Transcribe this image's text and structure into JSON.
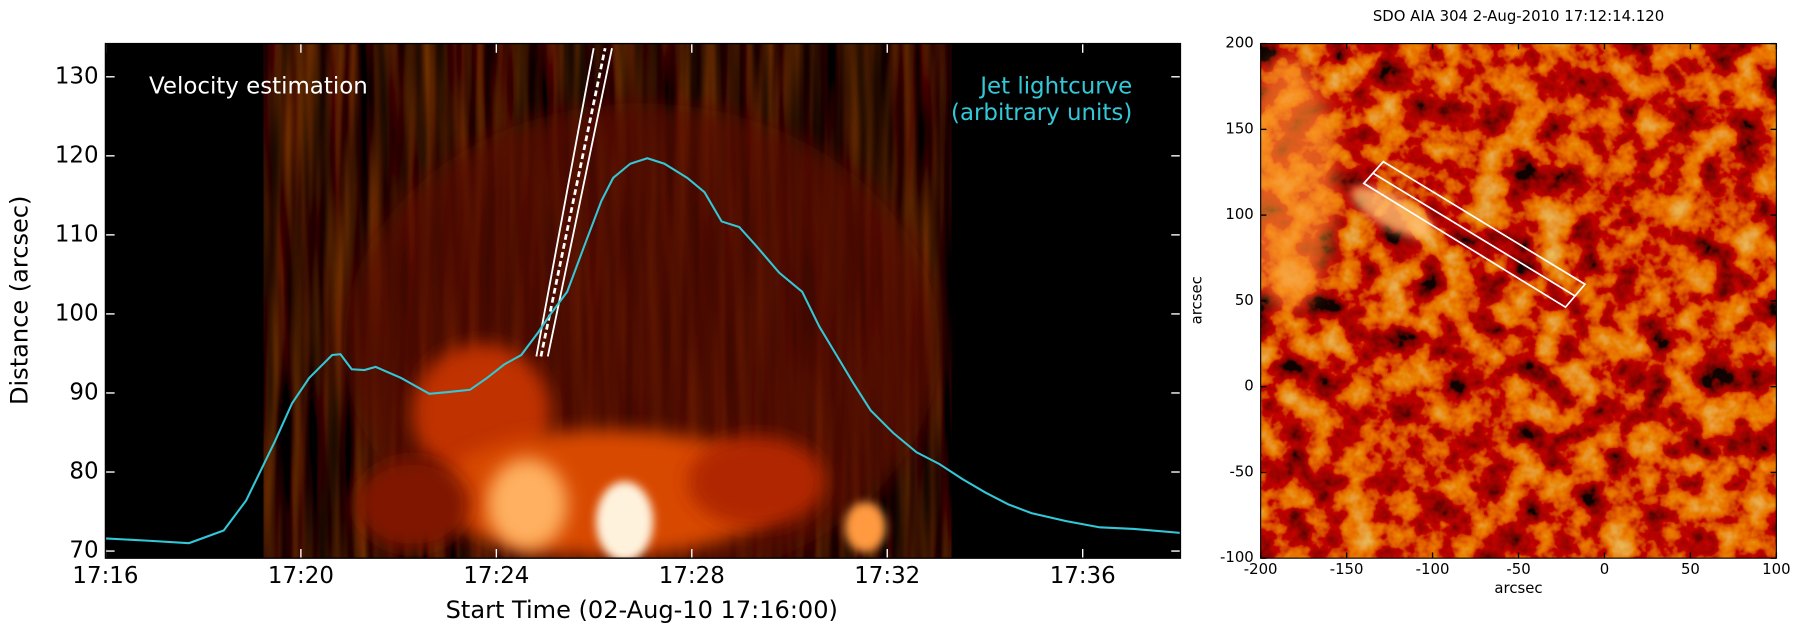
{
  "chart_data": [
    {
      "type": "line",
      "annotations": [
        "Velocity estimation",
        "(arbitrary units)"
      ],
      "xlabel": "Start Time (02-Aug-10 17:16:00)",
      "ylabel": "Distance (arcsec)",
      "xlim": [
        0,
        22
      ],
      "ylim": [
        69.1,
        134.2
      ],
      "xticks": [
        {
          "value": 0,
          "label": "17:16"
        },
        {
          "value": 4,
          "label": "17:20"
        },
        {
          "value": 8,
          "label": "17:24"
        },
        {
          "value": 12,
          "label": "17:28"
        },
        {
          "value": 16,
          "label": "17:32"
        },
        {
          "value": 20,
          "label": "17:36"
        }
      ],
      "yticks": [
        70,
        80,
        90,
        100,
        110,
        120,
        130
      ],
      "x": [
        0,
        0.89,
        1.71,
        2.42,
        2.88,
        3.47,
        3.82,
        4.17,
        4.64,
        4.81,
        5.04,
        5.3,
        5.53,
        6.05,
        6.63,
        6.99,
        7.46,
        7.81,
        8.16,
        8.51,
        8.86,
        9.1,
        9.45,
        9.8,
        10.15,
        10.39,
        10.74,
        11.09,
        11.44,
        11.91,
        12.26,
        12.61,
        12.97,
        13.32,
        13.79,
        14.26,
        14.61,
        14.96,
        15.31,
        15.66,
        16.13,
        16.6,
        17.07,
        17.54,
        18.01,
        18.48,
        18.95,
        19.65,
        20.35,
        21.05,
        21.99
      ],
      "series": [
        {
          "name": "Jet lightcurve",
          "color": "#33c8d8",
          "values": [
            71.6,
            71.3,
            71.0,
            72.6,
            76.4,
            83.9,
            88.7,
            91.9,
            94.8,
            94.9,
            93.0,
            92.9,
            93.3,
            91.9,
            89.9,
            90.1,
            90.4,
            91.9,
            93.6,
            94.8,
            97.7,
            99.9,
            102.8,
            108.6,
            114.3,
            117.2,
            119.0,
            119.7,
            119.0,
            117.2,
            115.4,
            111.7,
            111.0,
            108.6,
            105.2,
            102.8,
            98.4,
            94.8,
            91.2,
            87.8,
            84.9,
            82.5,
            81.0,
            79.1,
            77.4,
            75.9,
            74.8,
            73.8,
            73.0,
            72.8,
            72.3
          ]
        }
      ]
    },
    {
      "type": "image",
      "title": "SDO AIA 304  2-Aug-2010 17:12:14.120",
      "xlabel": "arcsec",
      "ylabel": "arcsec",
      "xlim": [
        -200,
        100
      ],
      "ylim": [
        -100,
        200
      ],
      "xticks": [
        -200,
        -150,
        -100,
        -50,
        0,
        50,
        100
      ],
      "yticks": [
        -100,
        -50,
        0,
        50,
        100,
        150,
        200
      ]
    }
  ]
}
